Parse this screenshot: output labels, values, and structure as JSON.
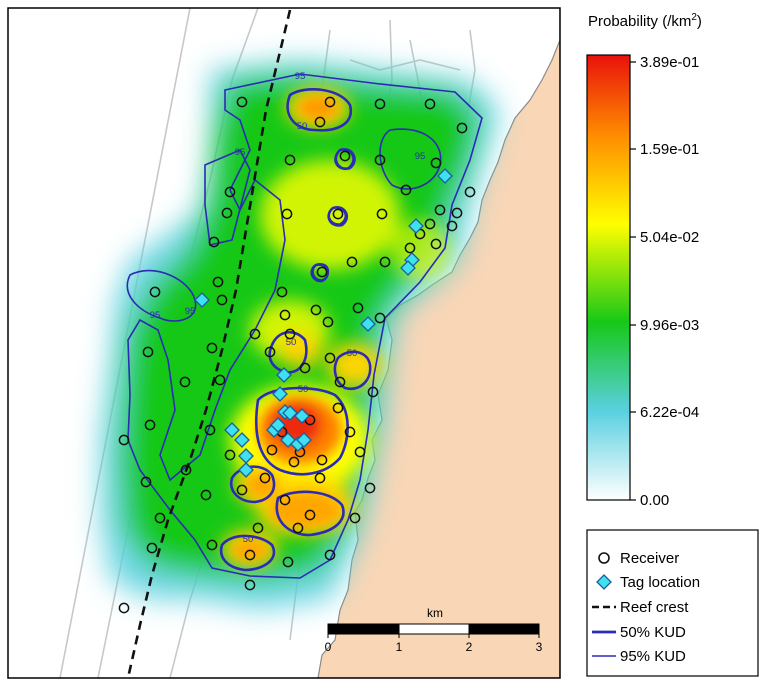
{
  "colorbar": {
    "title": "Probability (/km",
    "title_sup": "2",
    "title_close": ")",
    "ticks": [
      "3.89e-01",
      "1.59e-01",
      "5.04e-02",
      "9.96e-03",
      "6.22e-04",
      "0.00"
    ],
    "colors": [
      "#ffffff",
      "#5ad0e0",
      "#17c817",
      "#ffff00",
      "#ff7a00",
      "#e8120c"
    ]
  },
  "legend": {
    "items": [
      {
        "symbol": "circle",
        "label": "Receiver"
      },
      {
        "symbol": "diamond",
        "label": "Tag location"
      },
      {
        "symbol": "dashed",
        "label": "Reef crest"
      },
      {
        "symbol": "thick-line",
        "label": "50% KUD"
      },
      {
        "symbol": "thin-line",
        "label": "95% KUD"
      }
    ]
  },
  "scalebar": {
    "unit": "km",
    "ticks": [
      "0",
      "1",
      "2",
      "3"
    ]
  },
  "contour_labels": {
    "kud95": "95",
    "kud50": "50"
  },
  "colors": {
    "land": "#f9d6b6",
    "sea": "#ffffff",
    "kud_line": "#2b2bb5",
    "receiver_stroke": "#111111",
    "tag_fill": "#3fe0f0",
    "reef_crest": "#111111"
  }
}
